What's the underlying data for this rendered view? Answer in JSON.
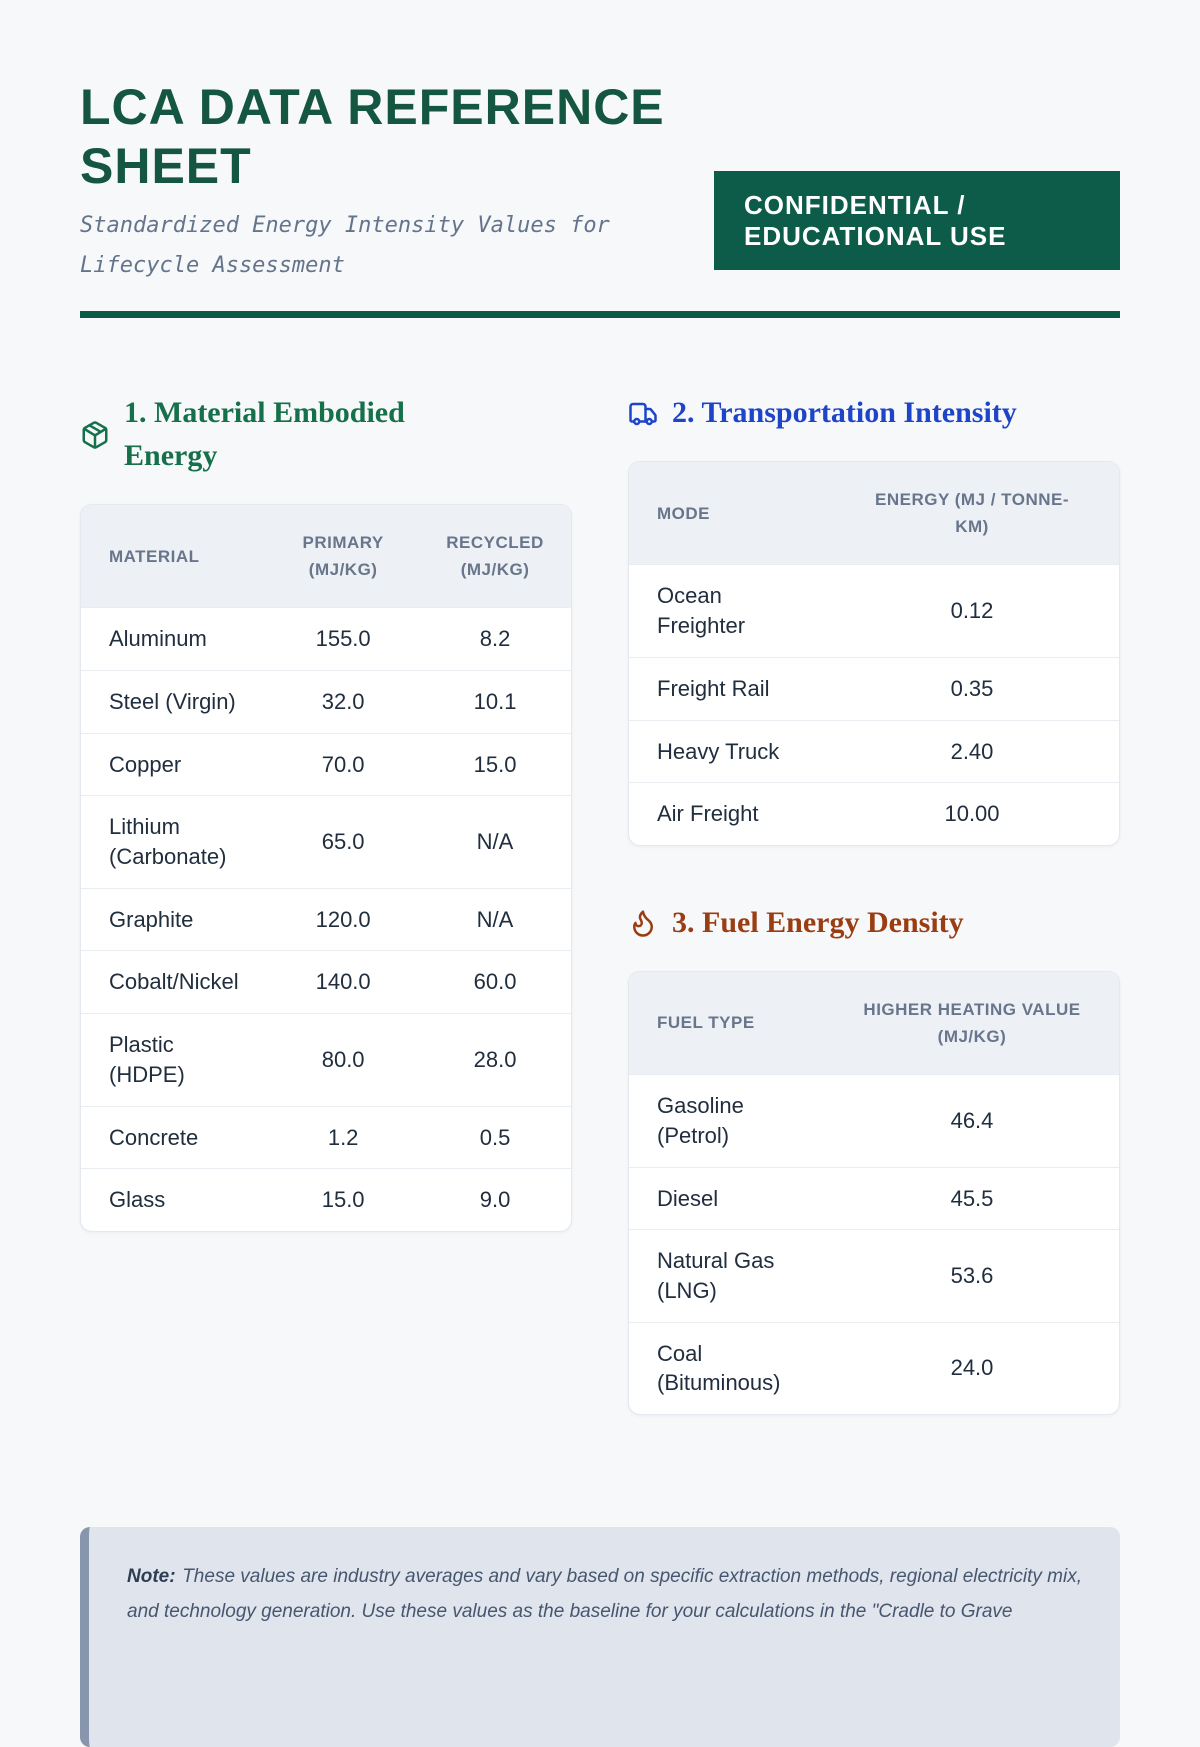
{
  "document": {
    "title": "LCA DATA REFERENCE SHEET",
    "subtitle": "Standardized Energy Intensity Values for Lifecycle Assessment",
    "badge": "CONFIDENTIAL /\nEDUCATIONAL USE"
  },
  "colors": {
    "title_green": "#14563f",
    "badge_bg": "#0d5c4a",
    "badge_text": "#ffffff",
    "divider_green": "#0b5a45",
    "material_accent": "#16704a",
    "transport_accent": "#1e44c8",
    "fuel_accent": "#9a3d12",
    "note_bg": "#dfe4ed",
    "note_border": "#8795ad"
  },
  "sections": [
    {
      "heading": "1. Material Embodied Energy",
      "icon": "package-icon",
      "table": {
        "headers": [
          "MATERIAL",
          "PRIMARY (MJ/KG)",
          "RECYCLED (MJ/KG)"
        ],
        "rows": [
          [
            "Aluminum",
            "155.0",
            "8.2"
          ],
          [
            "Steel (Virgin)",
            "32.0",
            "10.1"
          ],
          [
            "Copper",
            "70.0",
            "15.0"
          ],
          [
            "Lithium (Carbonate)",
            "65.0",
            "N/A"
          ],
          [
            "Graphite",
            "120.0",
            "N/A"
          ],
          [
            "Cobalt/Nickel",
            "140.0",
            "60.0"
          ],
          [
            "Plastic (HDPE)",
            "80.0",
            "28.0"
          ],
          [
            "Concrete",
            "1.2",
            "0.5"
          ],
          [
            "Glass",
            "15.0",
            "9.0"
          ]
        ]
      }
    },
    {
      "heading": "2. Transportation Intensity",
      "icon": "truck-icon",
      "table": {
        "headers": [
          "MODE",
          "ENERGY (MJ / TONNE-KM)"
        ],
        "rows": [
          [
            "Ocean Freighter",
            "0.12"
          ],
          [
            "Freight Rail",
            "0.35"
          ],
          [
            "Heavy Truck",
            "2.40"
          ],
          [
            "Air Freight",
            "10.00"
          ]
        ]
      }
    },
    {
      "heading": "3. Fuel Energy Density",
      "icon": "flame-icon",
      "table": {
        "headers": [
          "FUEL TYPE",
          "HIGHER HEATING VALUE (MJ/KG)"
        ],
        "rows": [
          [
            "Gasoline (Petrol)",
            "46.4"
          ],
          [
            "Diesel",
            "45.5"
          ],
          [
            "Natural Gas (LNG)",
            "53.6"
          ],
          [
            "Coal (Bituminous)",
            "24.0"
          ]
        ]
      }
    }
  ],
  "note": {
    "label": "Note:",
    "text": "These values are industry averages and vary based on specific extraction methods, regional electricity mix, and technology generation. Use these values as the baseline for your calculations in the \"Cradle to Grave"
  }
}
